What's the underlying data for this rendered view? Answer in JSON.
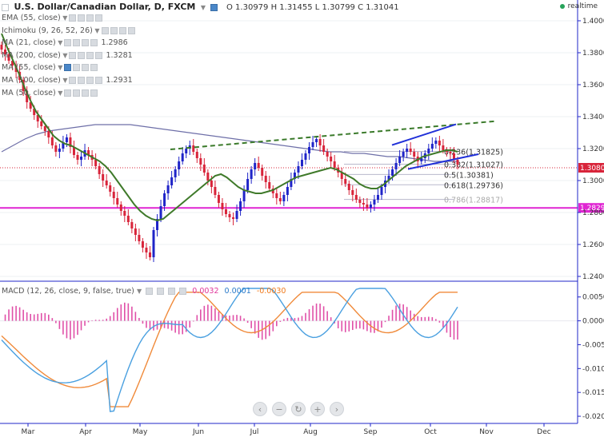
{
  "header": {
    "title": "U.S. Dollar/Canadian Dollar, D, FXCM",
    "ohlc": "O 1.30979 H 1.31455 L 1.30799 C 1.31041",
    "realtime_label": "realtime"
  },
  "indicators": [
    {
      "label": "EMA (55, close)",
      "value": ""
    },
    {
      "label": "Ichimoku (9, 26, 52, 26)",
      "value": ""
    },
    {
      "label": "MA (21, close)",
      "value": "1.2986"
    },
    {
      "label": "MA (200, close)",
      "value": "1.3281"
    },
    {
      "label": "MA (55, close)",
      "value": ""
    },
    {
      "label": "MA (100, close)",
      "value": "1.2931"
    },
    {
      "label": "MA (50, close)",
      "value": ""
    }
  ],
  "macd": {
    "label": "MACD (12, 26, close, 9, false, true)",
    "values": [
      "0.0032",
      "0.0001",
      "-0.0030"
    ],
    "value_colors": [
      "#e0359a",
      "#2a7ac9",
      "#f07a1c"
    ]
  },
  "colors": {
    "candle_up": "#1f24c8",
    "candle_down": "#d8243a",
    "ma_green": "#3f7a2a",
    "ma_purple": "#6e6fa8",
    "support_line": "#e025d2",
    "price_line": "#d8243a",
    "trend_dashed": "#3a7a2a",
    "channel": "#2030d8",
    "macd_line": "#4aa0e0",
    "signal_line": "#f08a3a",
    "histogram": "#e050a8"
  },
  "chart_data": {
    "type": "candlestick",
    "title": "U.S. Dollar/Canadian Dollar, D, FXCM",
    "price_axis": {
      "ticks": [
        "1.40000",
        "1.38000",
        "1.36000",
        "1.34000",
        "1.32000",
        "1.30000",
        "1.28000",
        "1.26000",
        "1.24000"
      ],
      "ylim": [
        1.238,
        1.408
      ],
      "current_price_label": "1.30803",
      "support_label": "1.28292"
    },
    "time_axis": {
      "months": [
        "Mar",
        "Apr",
        "May",
        "Jun",
        "Jul",
        "Aug",
        "Sep",
        "Oct",
        "Nov",
        "Dec"
      ]
    },
    "support_level": 1.2829,
    "current_price": 1.308,
    "fibonacci": [
      {
        "label": "0.236(1.31825)",
        "value": 1.31825
      },
      {
        "label": "0.382(1.31027)",
        "value": 1.31027
      },
      {
        "label": "0.5(1.30381)",
        "value": 1.30381
      },
      {
        "label": "0.618(1.29736)",
        "value": 1.29736
      },
      {
        "label": "0.786(1.28817)",
        "value": 1.28817
      }
    ],
    "macd_axis": {
      "ticks": [
        "0.0050",
        "0.0000",
        "-0.0050",
        "-0.0100",
        "-0.0150",
        "-0.0200"
      ],
      "ylim": [
        -0.0215,
        0.0078
      ]
    },
    "close_series": [
      1.382,
      1.379,
      1.375,
      1.372,
      1.368,
      1.363,
      1.356,
      1.349,
      1.345,
      1.341,
      1.337,
      1.334,
      1.331,
      1.327,
      1.322,
      1.318,
      1.32,
      1.324,
      1.327,
      1.321,
      1.316,
      1.313,
      1.315,
      1.319,
      1.316,
      1.313,
      1.309,
      1.304,
      1.3,
      1.297,
      1.293,
      1.289,
      1.285,
      1.281,
      1.278,
      1.274,
      1.27,
      1.266,
      1.262,
      1.258,
      1.255,
      1.252,
      1.269,
      1.276,
      1.284,
      1.292,
      1.297,
      1.302,
      1.307,
      1.312,
      1.317,
      1.32,
      1.322,
      1.318,
      1.314,
      1.31,
      1.305,
      1.3,
      1.296,
      1.291,
      1.286,
      1.282,
      1.279,
      1.277,
      1.276,
      1.281,
      1.287,
      1.294,
      1.301,
      1.307,
      1.311,
      1.308,
      1.303,
      1.299,
      1.295,
      1.292,
      1.289,
      1.287,
      1.291,
      1.296,
      1.301,
      1.305,
      1.309,
      1.313,
      1.317,
      1.321,
      1.324,
      1.326,
      1.322,
      1.318,
      1.315,
      1.312,
      1.308,
      1.305,
      1.301,
      1.298,
      1.294,
      1.291,
      1.288,
      1.286,
      1.285,
      1.283,
      1.285,
      1.288,
      1.291,
      1.296,
      1.3,
      1.303,
      1.307,
      1.311,
      1.315,
      1.318,
      1.32,
      1.318,
      1.315,
      1.312,
      1.314,
      1.317,
      1.32,
      1.323,
      1.325,
      1.322,
      1.319,
      1.318,
      1.317,
      1.313,
      1.31
    ],
    "ma_green": [
      1.392,
      1.383,
      1.375,
      1.367,
      1.358,
      1.35,
      1.343,
      1.338,
      1.333,
      1.328,
      1.325,
      1.323,
      1.322,
      1.32,
      1.318,
      1.316,
      1.314,
      1.312,
      1.309,
      1.305,
      1.3,
      1.295,
      1.29,
      1.285,
      1.281,
      1.278,
      1.276,
      1.275,
      1.276,
      1.279,
      1.282,
      1.285,
      1.288,
      1.291,
      1.294,
      1.297,
      1.3,
      1.303,
      1.304,
      1.302,
      1.299,
      1.296,
      1.294,
      1.293,
      1.292,
      1.292,
      1.293,
      1.294,
      1.296,
      1.298,
      1.3,
      1.302,
      1.303,
      1.304,
      1.305,
      1.306,
      1.307,
      1.308,
      1.307,
      1.305,
      1.303,
      1.301,
      1.298,
      1.296,
      1.295,
      1.295,
      1.297,
      1.3,
      1.303,
      1.306,
      1.309,
      1.311,
      1.313,
      1.315,
      1.316,
      1.317,
      1.318,
      1.319,
      1.319,
      1.318
    ],
    "ma_purple": [
      1.318,
      1.322,
      1.326,
      1.329,
      1.331,
      1.332,
      1.333,
      1.334,
      1.335,
      1.335,
      1.335,
      1.335,
      1.334,
      1.333,
      1.332,
      1.331,
      1.33,
      1.329,
      1.328,
      1.327,
      1.326,
      1.325,
      1.324,
      1.323,
      1.322,
      1.321,
      1.32,
      1.319,
      1.318,
      1.318,
      1.317,
      1.317,
      1.316,
      1.315,
      1.315,
      1.314,
      1.313,
      1.312,
      1.312,
      1.312
    ]
  }
}
